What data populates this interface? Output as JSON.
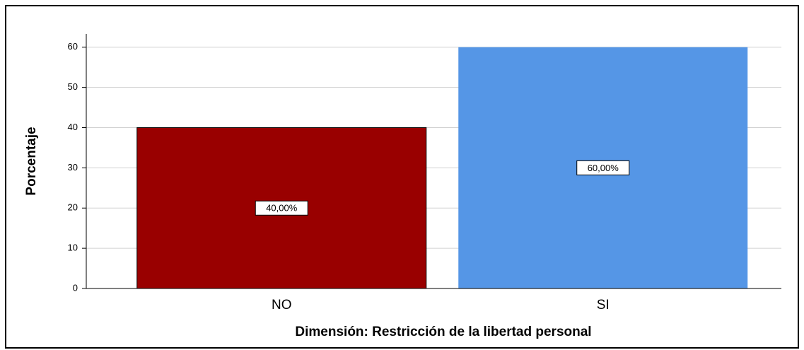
{
  "chart_data": {
    "type": "bar",
    "x_label": "Dimensión: Restricción de la libertad personal",
    "y_label": "Porcentaje",
    "categories": [
      "NO",
      "SI"
    ],
    "values": [
      40,
      60
    ],
    "value_labels": [
      "40,00%",
      "60,00%"
    ],
    "colors": [
      "#990000",
      "#5596e6"
    ],
    "ylim": [
      0,
      63.3
    ],
    "yticks": [
      0,
      10,
      20,
      30,
      40,
      50,
      60
    ],
    "grid": true
  }
}
